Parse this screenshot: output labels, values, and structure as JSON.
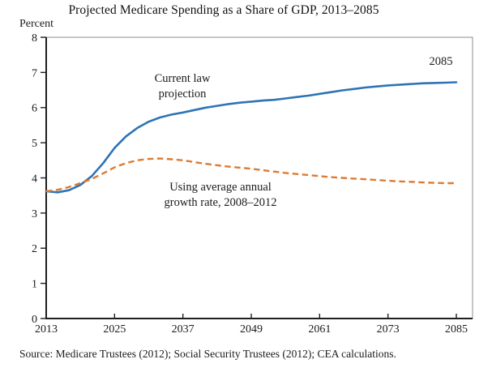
{
  "figure": {
    "title": "Projected Medicare Spending as a Share of GDP, 2013–2085",
    "y_axis_unit_label": "Percent",
    "source_note": "Source: Medicare Trustees (2012); Social Security Trustees (2012); CEA calculations.",
    "annotations": {
      "current_law_line1": "Current law",
      "current_law_line2": "projection",
      "growth_rate_line1": "Using average annual",
      "growth_rate_line2": "growth rate, 2008–2012",
      "endpoint_year": "2085"
    },
    "colors": {
      "current_law_line": "#2E74B5",
      "growth_rate_line": "#DC7B33",
      "axis": "#1f1f1f",
      "frame": "#8c8c8c",
      "text": "#1a1a1a"
    }
  },
  "chart_data": {
    "type": "line",
    "title": "Projected Medicare Spending as a Share of GDP, 2013–2085",
    "xlabel": "",
    "ylabel": "Percent",
    "xlim": [
      2013,
      2085
    ],
    "ylim": [
      0,
      8
    ],
    "xticks": [
      2013,
      2025,
      2037,
      2049,
      2061,
      2073,
      2085
    ],
    "yticks": [
      0,
      1,
      2,
      3,
      4,
      5,
      6,
      7,
      8
    ],
    "grid": false,
    "legend_position": "inline-annotations",
    "x": [
      2013,
      2015,
      2017,
      2019,
      2021,
      2023,
      2025,
      2027,
      2029,
      2031,
      2033,
      2035,
      2037,
      2039,
      2041,
      2043,
      2045,
      2047,
      2049,
      2051,
      2053,
      2055,
      2057,
      2059,
      2061,
      2063,
      2065,
      2067,
      2069,
      2071,
      2073,
      2075,
      2077,
      2079,
      2081,
      2083,
      2085
    ],
    "series": [
      {
        "name": "Current law projection",
        "style": "solid",
        "color": "#2E74B5",
        "values": [
          3.62,
          3.59,
          3.65,
          3.8,
          4.05,
          4.42,
          4.85,
          5.18,
          5.42,
          5.6,
          5.72,
          5.8,
          5.86,
          5.93,
          6.0,
          6.05,
          6.1,
          6.14,
          6.17,
          6.2,
          6.22,
          6.26,
          6.3,
          6.34,
          6.39,
          6.44,
          6.49,
          6.53,
          6.57,
          6.6,
          6.63,
          6.65,
          6.67,
          6.69,
          6.7,
          6.71,
          6.72
        ]
      },
      {
        "name": "Using average annual growth rate, 2008–2012",
        "style": "dashed",
        "color": "#DC7B33",
        "values": [
          3.62,
          3.66,
          3.74,
          3.85,
          3.97,
          4.13,
          4.3,
          4.42,
          4.5,
          4.54,
          4.55,
          4.53,
          4.5,
          4.45,
          4.4,
          4.36,
          4.32,
          4.29,
          4.26,
          4.22,
          4.18,
          4.14,
          4.11,
          4.08,
          4.05,
          4.02,
          4.0,
          3.98,
          3.96,
          3.94,
          3.92,
          3.9,
          3.89,
          3.87,
          3.86,
          3.85,
          3.85
        ]
      }
    ]
  }
}
